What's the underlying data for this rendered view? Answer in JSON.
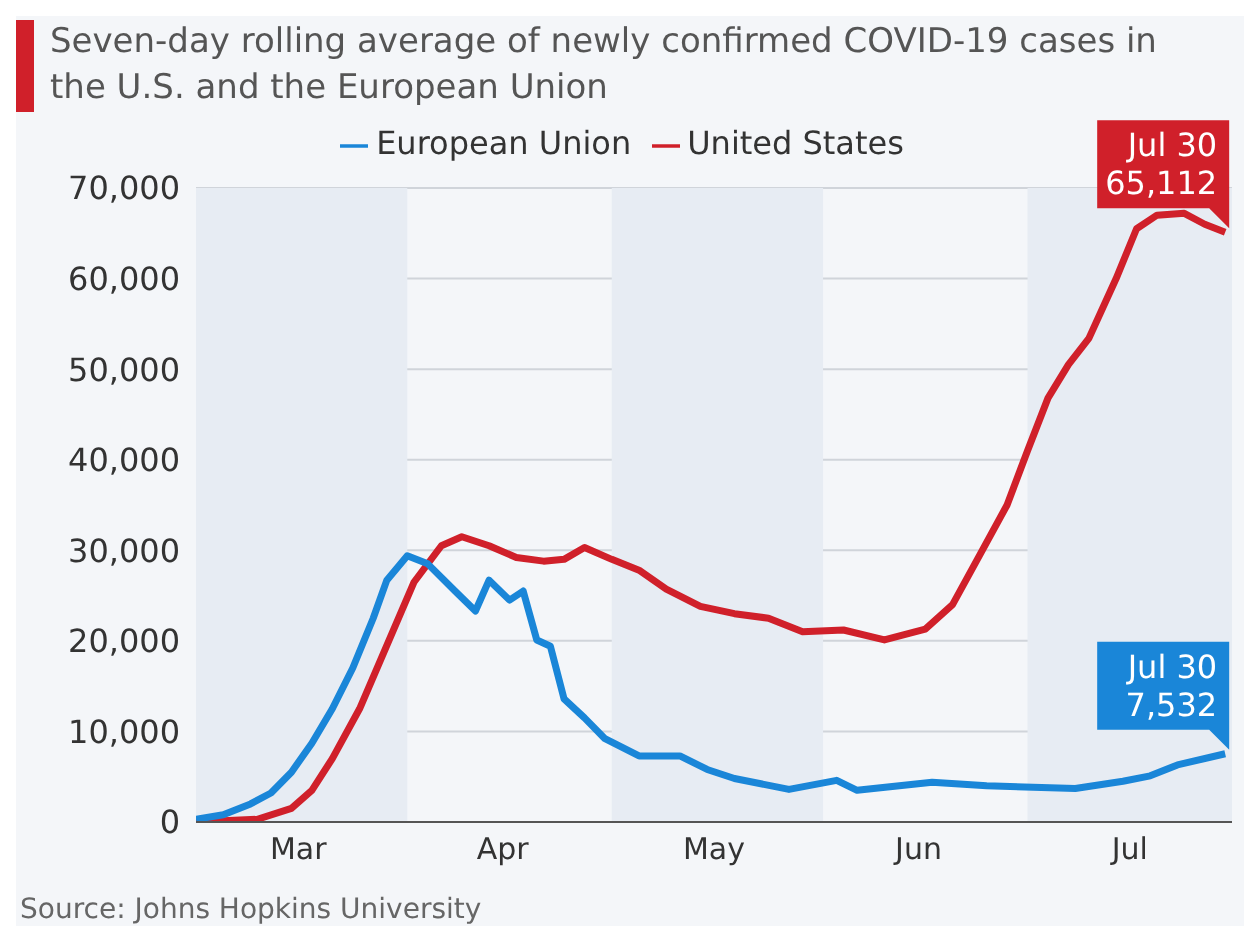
{
  "chart_data": {
    "type": "line",
    "title": "Seven-day rolling average of newly confirmed COVID-19 cases in the U.S. and the European Union",
    "annotations": [
      {
        "text": "Jul 30\n65,112",
        "x": "--07-30",
        "y": 65112
      },
      {
        "text": "Jul 30\n7,532",
        "x": "--07-30",
        "y": 7532
      },
      "Source: Johns Hopkins University"
    ],
    "xlim": [
      "--03-01",
      "--07-31"
    ],
    "xticks": [
      {
        "value": "--03-16",
        "label": "Mar"
      },
      {
        "value": "--04-15",
        "label": "Apr"
      },
      {
        "value": "--05-16",
        "label": "May"
      },
      {
        "value": "--06-15",
        "label": "Jun"
      },
      {
        "value": "--07-16",
        "label": "Jul"
      }
    ],
    "ylim": [
      0,
      70000
    ],
    "yticks": [
      {
        "value": 0,
        "label": "0"
      },
      {
        "value": 10000,
        "label": "10,000"
      },
      {
        "value": 20000,
        "label": "20,000"
      },
      {
        "value": 30000,
        "label": "30,000"
      },
      {
        "value": 40000,
        "label": "40,000"
      },
      {
        "value": 50000,
        "label": "50,000"
      },
      {
        "value": 60000,
        "label": "60,000"
      },
      {
        "value": 70000,
        "label": "70,000"
      }
    ],
    "bands": [
      {
        "axis": "x",
        "from": "--03-01",
        "to": "--04-01",
        "color": "#e7ecf3"
      },
      {
        "axis": "x",
        "from": "--05-01",
        "to": "--06-01",
        "color": "#e7ecf3"
      },
      {
        "axis": "x",
        "from": "--07-01",
        "to": "--07-31",
        "color": "#e7ecf3"
      }
    ],
    "grid": "y",
    "legend": "top",
    "marker": "none",
    "line_style": "solid",
    "series": [
      {
        "name": "United States",
        "color": "#d0202a",
        "x": [
          "--03-01",
          "--03-10",
          "--03-15",
          "--03-18",
          "--03-21",
          "--03-25",
          "--03-29",
          "--04-02",
          "--04-06",
          "--04-09",
          "--04-13",
          "--04-17",
          "--04-21",
          "--04-24",
          "--04-27",
          "--05-01",
          "--05-05",
          "--05-09",
          "--05-14",
          "--05-19",
          "--05-24",
          "--05-29",
          "--06-04",
          "--06-10",
          "--06-16",
          "--06-20",
          "--06-24",
          "--06-28",
          "--07-01",
          "--07-04",
          "--07-07",
          "--07-10",
          "--07-14",
          "--07-17",
          "--07-20",
          "--07-24",
          "--07-27",
          "--07-30"
        ],
        "values": [
          0,
          300,
          1500,
          3500,
          7000,
          12500,
          19500,
          26500,
          30500,
          31500,
          30500,
          29200,
          28800,
          29000,
          30300,
          29000,
          27800,
          25700,
          23800,
          23000,
          22500,
          21000,
          21200,
          20100,
          21300,
          24000,
          29500,
          35000,
          41000,
          46800,
          50500,
          53400,
          60000,
          65500,
          67000,
          67200,
          66000,
          65112
        ]
      },
      {
        "name": "European Union",
        "color": "#1a86d8",
        "x": [
          "--03-01",
          "--03-05",
          "--03-09",
          "--03-12",
          "--03-15",
          "--03-18",
          "--03-21",
          "--03-24",
          "--03-27",
          "--03-29",
          "--04-01",
          "--04-04",
          "--04-08",
          "--04-11",
          "--04-13",
          "--04-16",
          "--04-18",
          "--04-20",
          "--04-22",
          "--04-24",
          "--04-27",
          "--04-30",
          "--05-05",
          "--05-11",
          "--05-15",
          "--05-19",
          "--05-27",
          "--06-03",
          "--06-06",
          "--06-17",
          "--06-25",
          "--07-08",
          "--07-15",
          "--07-19",
          "--07-23",
          "--07-30"
        ],
        "values": [
          300,
          800,
          2000,
          3200,
          5500,
          8700,
          12500,
          17000,
          22500,
          26700,
          29400,
          28500,
          25500,
          23300,
          26700,
          24500,
          25500,
          20100,
          19400,
          13600,
          11500,
          9200,
          7300,
          7300,
          5800,
          4800,
          3600,
          4600,
          3500,
          4400,
          4000,
          3700,
          4500,
          5100,
          6300,
          7532
        ]
      }
    ]
  }
}
